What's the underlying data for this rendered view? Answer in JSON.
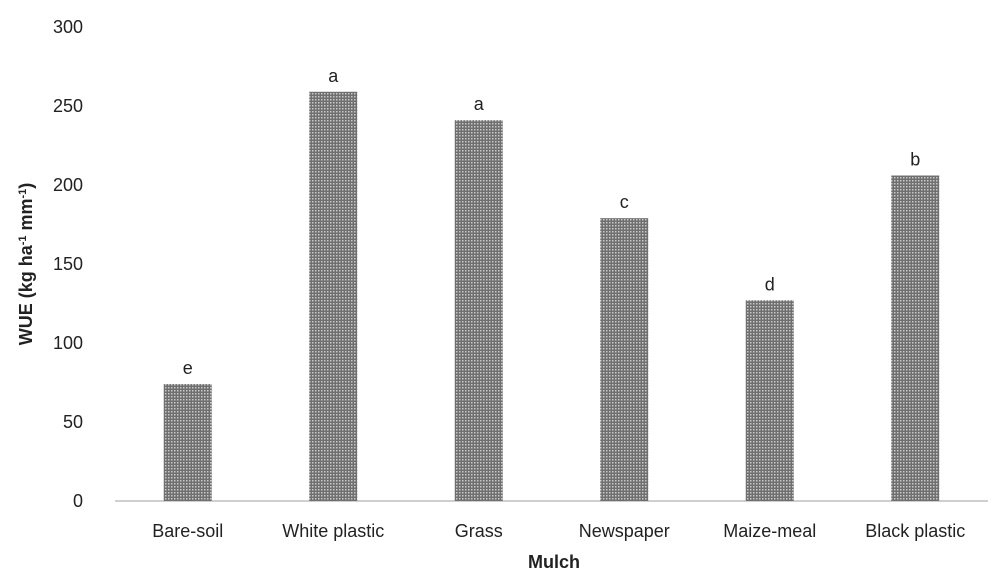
{
  "chart_data": {
    "type": "bar",
    "categories": [
      "Bare-soil",
      "White plastic",
      "Grass",
      "Newspaper",
      "Maize-meal",
      "Black plastic"
    ],
    "values": [
      74,
      259,
      241,
      179,
      127,
      206
    ],
    "significance_letters": [
      "e",
      "a",
      "a",
      "c",
      "d",
      "b"
    ],
    "xlabel": "Mulch",
    "ylabel": "WUE (kg ha-1 mm-1)",
    "ylabel_parts": {
      "base": "WUE (kg ha",
      "sup1": "-1",
      "mid": " mm",
      "sup2": "-1",
      "end": ")"
    },
    "ylim": [
      0,
      300
    ],
    "yticks": [
      0,
      50,
      100,
      150,
      200,
      250,
      300
    ],
    "grid": false,
    "legend": "none",
    "colors": {
      "bar_fill": "#6f6f6f",
      "bar_stripe": "#c8c8c8",
      "axis": "#bfbfbf",
      "text": "#222222"
    }
  }
}
